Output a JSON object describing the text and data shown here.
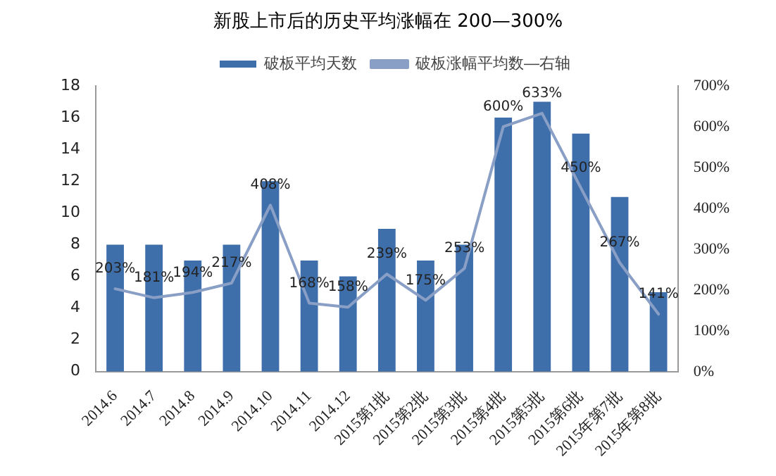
{
  "chart_data": {
    "type": "bar",
    "title": "新股上市后的历史平均涨幅在 200—300%",
    "categories": [
      "2014.6",
      "2014.7",
      "2014.8",
      "2014.9",
      "2014.10",
      "2014.11",
      "2014.12",
      "2015第1批",
      "2015第2批",
      "2015第3批",
      "2015第4批",
      "2015第5批",
      "2015第6批",
      "2015年第7批",
      "2015年第8批"
    ],
    "series": [
      {
        "name": "破板平均天数",
        "color": "#3f6faa",
        "values": [
          8,
          8,
          7,
          8,
          12,
          7,
          6,
          9,
          7,
          8,
          16,
          17,
          15,
          11,
          5
        ]
      },
      {
        "name": "破板涨幅平均数—右轴",
        "type": "line",
        "axis": "y2",
        "color": "#8a9fc6",
        "values": [
          203,
          181,
          194,
          217,
          408,
          168,
          158,
          239,
          175,
          253,
          600,
          633,
          450,
          267,
          141
        ],
        "value_labels": [
          "203%",
          "181%",
          "194%",
          "217%",
          "408%",
          "168%",
          "158%",
          "239%",
          "175%",
          "253%",
          "600%",
          "633%",
          "450%",
          "267%",
          "141%"
        ]
      }
    ],
    "ylim": [
      0,
      18
    ],
    "yticks": [
      0,
      2,
      4,
      6,
      8,
      10,
      12,
      14,
      16,
      18
    ],
    "y2lim": [
      0,
      700
    ],
    "y2ticks": [
      {
        "value": 0,
        "label": "0%"
      },
      {
        "value": 100,
        "label": "100%"
      },
      {
        "value": 200,
        "label": "200%"
      },
      {
        "value": 300,
        "label": "300%"
      },
      {
        "value": 400,
        "label": "400%"
      },
      {
        "value": 500,
        "label": "500%"
      },
      {
        "value": 600,
        "label": "600%"
      },
      {
        "value": 700,
        "label": "700%"
      }
    ],
    "legend": "top",
    "grid": false,
    "marker": "none"
  }
}
